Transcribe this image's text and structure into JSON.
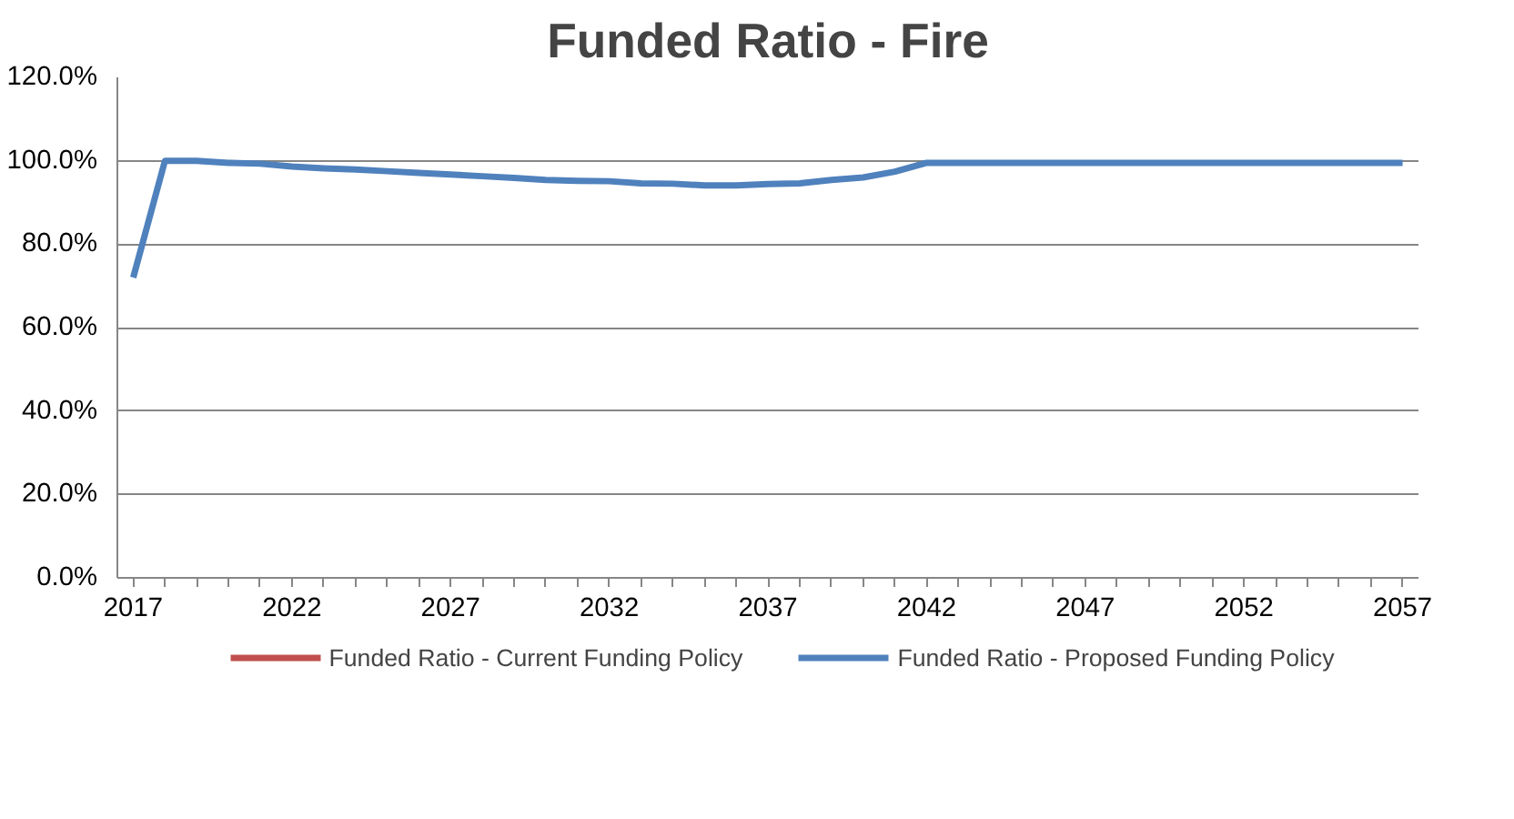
{
  "chart_data": {
    "type": "line",
    "title": "Funded Ratio - Fire",
    "x": [
      2017,
      2018,
      2019,
      2020,
      2021,
      2022,
      2023,
      2024,
      2025,
      2026,
      2027,
      2028,
      2029,
      2030,
      2031,
      2032,
      2033,
      2034,
      2035,
      2036,
      2037,
      2038,
      2039,
      2040,
      2041,
      2042,
      2043,
      2044,
      2045,
      2046,
      2047,
      2048,
      2049,
      2050,
      2051,
      2052,
      2053,
      2054,
      2055,
      2056,
      2057
    ],
    "series": [
      {
        "name": "Funded Ratio - Current Funding Policy",
        "color": "#c0504d",
        "values": [
          null,
          null,
          null,
          null,
          null,
          null,
          null,
          null,
          null,
          null,
          null,
          null,
          null,
          null,
          null,
          null,
          null,
          null,
          null,
          null,
          null,
          null,
          null,
          null,
          null,
          null,
          null,
          null,
          null,
          null,
          null,
          null,
          null,
          null,
          null,
          null,
          null,
          null,
          null,
          null,
          null
        ]
      },
      {
        "name": "Funded Ratio - Proposed Funding Policy",
        "color": "#4f81bd",
        "values": [
          72,
          100,
          100,
          99.5,
          99.3,
          98.6,
          98.2,
          97.9,
          97.5,
          97.1,
          96.7,
          96.3,
          95.9,
          95.4,
          95.2,
          95.1,
          94.6,
          94.5,
          94.1,
          94.1,
          94.4,
          94.6,
          95.4,
          96.0,
          97.4,
          99.5,
          99.5,
          99.5,
          99.5,
          99.5,
          99.5,
          99.5,
          99.5,
          99.5,
          99.5,
          99.5,
          99.5,
          99.5,
          99.5,
          99.5,
          99.5
        ]
      }
    ],
    "xlim": [
      2016.5,
      2057.5
    ],
    "xticks": [
      2017,
      {
        "value": 2018,
        "label": null
      },
      {
        "value": 2019,
        "label": null
      },
      {
        "value": 2020,
        "label": null
      },
      {
        "value": 2021,
        "label": null
      },
      2022,
      {
        "value": 2023,
        "label": null
      },
      {
        "value": 2024,
        "label": null
      },
      {
        "value": 2025,
        "label": null
      },
      {
        "value": 2026,
        "label": null
      },
      2027,
      {
        "value": 2028,
        "label": null
      },
      {
        "value": 2029,
        "label": null
      },
      {
        "value": 2030,
        "label": null
      },
      {
        "value": 2031,
        "label": null
      },
      2032,
      {
        "value": 2033,
        "label": null
      },
      {
        "value": 2034,
        "label": null
      },
      {
        "value": 2035,
        "label": null
      },
      {
        "value": 2036,
        "label": null
      },
      2037,
      {
        "value": 2038,
        "label": null
      },
      {
        "value": 2039,
        "label": null
      },
      {
        "value": 2040,
        "label": null
      },
      {
        "value": 2041,
        "label": null
      },
      2042,
      {
        "value": 2043,
        "label": null
      },
      {
        "value": 2044,
        "label": null
      },
      {
        "value": 2045,
        "label": null
      },
      {
        "value": 2046,
        "label": null
      },
      2047,
      {
        "value": 2048,
        "label": null
      },
      {
        "value": 2049,
        "label": null
      },
      {
        "value": 2050,
        "label": null
      },
      {
        "value": 2051,
        "label": null
      },
      2052,
      {
        "value": 2053,
        "label": null
      },
      {
        "value": 2054,
        "label": null
      },
      {
        "value": 2055,
        "label": null
      },
      {
        "value": 2056,
        "label": null
      },
      2057
    ],
    "ylim": [
      0,
      120
    ],
    "yticks": [
      {
        "value": 0,
        "label": "0.0%"
      },
      {
        "value": 20,
        "label": "20.0%"
      },
      {
        "value": 40,
        "label": "40.0%"
      },
      {
        "value": 60,
        "label": "60.0%"
      },
      {
        "value": 80,
        "label": "80.0%"
      },
      {
        "value": 100,
        "label": "100.0%"
      },
      {
        "value": 120,
        "label": "120.0%"
      }
    ],
    "grid": "y",
    "legend": "bottom"
  }
}
